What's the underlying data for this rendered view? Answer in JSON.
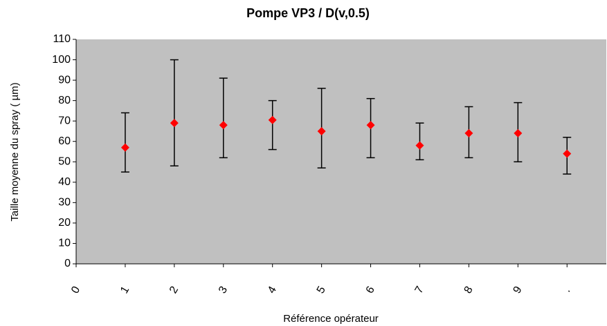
{
  "chart_data": {
    "type": "scatter",
    "title": "Pompe VP3 / D(v,0.5)",
    "x_label": "Référence opérateur",
    "y_label": "Taille moyenne du spray ( µm)",
    "x": [
      1,
      2,
      3,
      4,
      5,
      6,
      7,
      8,
      9,
      10
    ],
    "values": [
      57,
      69,
      68,
      70.5,
      65,
      68,
      58,
      64,
      64,
      54
    ],
    "low": [
      45,
      48,
      52,
      56,
      47,
      52,
      51,
      52,
      50,
      44
    ],
    "high": [
      74,
      100,
      91,
      80,
      86,
      81,
      69,
      77,
      79,
      62
    ],
    "color": "#ff0000",
    "error_color": "#000000",
    "plot_background": "#c0c0c0",
    "xlim": [
      0,
      10.8
    ],
    "xticks": [
      0,
      1,
      2,
      3,
      4,
      5,
      6,
      7,
      8,
      9,
      {
        "value": 10,
        "label": "."
      }
    ],
    "ylim": [
      0,
      110
    ],
    "yticks": [
      0,
      10,
      20,
      30,
      40,
      50,
      60,
      70,
      80,
      90,
      100,
      110
    ]
  }
}
